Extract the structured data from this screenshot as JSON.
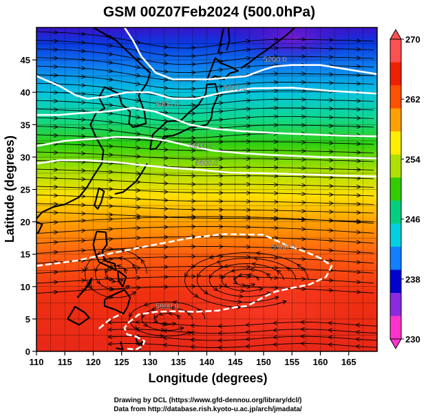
{
  "chart_data": {
    "type": "heatmap",
    "title": "GSM 00Z07Feb2024 (500.0hPa)",
    "xlabel": "Longitude (degrees)",
    "ylabel": "Latitude  (degrees)",
    "xlim": [
      110,
      170
    ],
    "ylim": [
      0,
      50
    ],
    "xticks": [
      "110",
      "115",
      "120",
      "125",
      "130",
      "135",
      "140",
      "145",
      "150",
      "155",
      "160",
      "165"
    ],
    "yticks": [
      "0",
      "5",
      "10",
      "15",
      "20",
      "25",
      "30",
      "35",
      "40",
      "45"
    ],
    "colorbar": {
      "ticks": [
        "230",
        "238",
        "246",
        "254",
        "262",
        "270"
      ],
      "range": [
        230,
        270
      ],
      "colors": [
        "#ff33cc",
        "#8a2be2",
        "#0000d0",
        "#1080ff",
        "#00d0e0",
        "#00d080",
        "#33cc00",
        "#b0e000",
        "#ffee00",
        "#ffa000",
        "#ff5000",
        "#ee2000",
        "#ff5050"
      ]
    },
    "contours": [
      {
        "label": "5200.0"
      },
      {
        "label": "5300.0"
      },
      {
        "label": "5400.0"
      },
      {
        "label": "5500.0"
      },
      {
        "label": "5600.0"
      },
      {
        "label": "5900.0"
      },
      {
        "label": "5900.0"
      }
    ],
    "grid": true
  },
  "credits": {
    "line1": "Drawing by DCL (https://www.gfd-dennou.org/library/dcl/)",
    "line2": "Data from http://database.rish.kyoto-u.ac.jp/arch/jmadata/"
  }
}
